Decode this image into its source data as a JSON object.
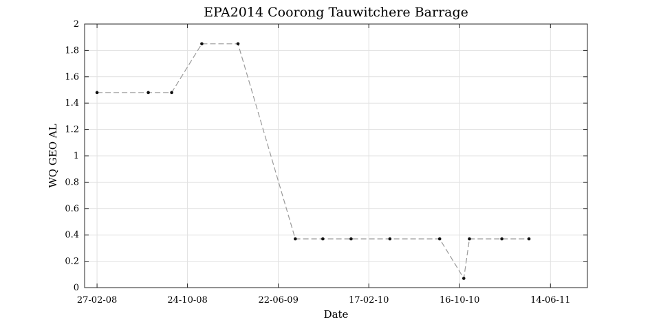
{
  "chart_data": {
    "type": "line",
    "title": "EPA2014 Coorong Tauwitchere Barrage",
    "xlabel": "Date",
    "ylabel": "WQ GEO AL",
    "xlim": [
      "2008-01-25",
      "2011-09-20"
    ],
    "ylim": [
      0,
      2
    ],
    "x_tick_labels": [
      "27-02-08",
      "24-10-08",
      "22-06-09",
      "17-02-10",
      "16-10-10",
      "14-06-11"
    ],
    "x_tick_dates": [
      "2008-02-27",
      "2008-10-24",
      "2009-06-22",
      "2010-02-17",
      "2010-10-16",
      "2011-06-14"
    ],
    "y_ticks": [
      0,
      0.2,
      0.4,
      0.6,
      0.8,
      1,
      1.2,
      1.4,
      1.6,
      1.8,
      2
    ],
    "y_tick_labels": [
      "0",
      "0.2",
      "0.4",
      "0.6",
      "0.8",
      "1",
      "1.2",
      "1.4",
      "1.6",
      "1.8",
      "2"
    ],
    "grid": true,
    "series": [
      {
        "x": [
          "2008-02-27",
          "2008-07-12",
          "2008-09-12",
          "2008-12-01",
          "2009-03-07",
          "2009-08-06",
          "2009-10-18",
          "2010-01-01",
          "2010-04-14",
          "2010-08-24",
          "2010-10-27",
          "2010-11-11",
          "2011-02-05",
          "2011-04-18"
        ],
        "values": [
          1.48,
          1.48,
          1.48,
          1.85,
          1.85,
          0.37,
          0.37,
          0.37,
          0.37,
          0.37,
          0.07,
          0.37,
          0.37,
          0.37
        ]
      }
    ],
    "colors": {
      "line": "#9a9a9a",
      "marker": "#111111",
      "grid": "#e1e1e1",
      "axes": "#262626"
    }
  }
}
